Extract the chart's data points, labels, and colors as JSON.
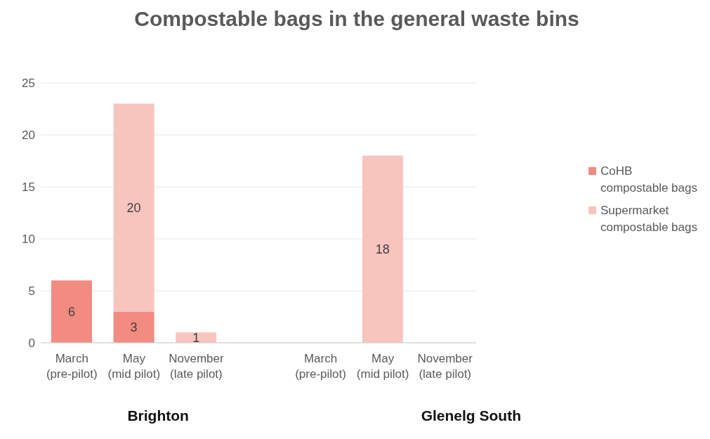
{
  "chart_data": {
    "type": "bar",
    "title": "Compostable bags in the general waste bins",
    "categories": [
      "March (pre-pilot)",
      "May (mid pilot)",
      "November (late pilot)",
      null,
      "March (pre-pilot)",
      "May (mid pilot)",
      "November (late pilot)"
    ],
    "series": [
      {
        "name": "CoHB compostable bags",
        "color": "#f28b80",
        "values": [
          6,
          3,
          null,
          null,
          null,
          null,
          null
        ]
      },
      {
        "name": "Supermarket compostable bags",
        "color": "#f7c4be",
        "values": [
          null,
          20,
          1,
          null,
          null,
          18,
          null
        ]
      }
    ],
    "stacked": true,
    "ylim": [
      0,
      25
    ],
    "yticks": [
      0,
      5,
      10,
      15,
      20,
      25
    ],
    "grid": "y",
    "legend": "right",
    "data_labels": true,
    "annotations": [
      "Brighton",
      "Glenelg South"
    ]
  }
}
